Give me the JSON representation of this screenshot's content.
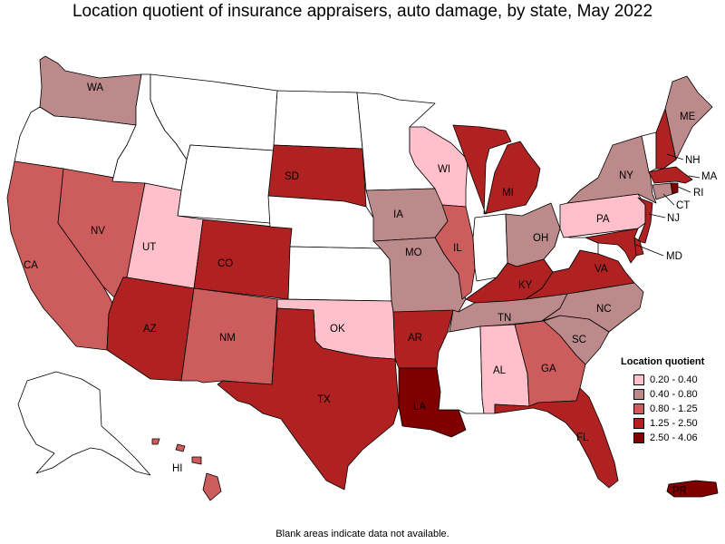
{
  "title": "Location quotient of insurance appraisers, auto damage, by state, May 2022",
  "footnote": "Blank areas indicate data not available.",
  "colors": {
    "none": "#ffffff",
    "c1": "#ffc0cb",
    "c2": "#bc8a8a",
    "c3": "#cd5c5c",
    "c4": "#b02222",
    "c5": "#800000"
  },
  "legend": {
    "title": "Location quotient",
    "items": [
      {
        "label": "0.20 - 0.40",
        "color": "#ffc0cb"
      },
      {
        "label": "0.40 - 0.80",
        "color": "#bc8a8a"
      },
      {
        "label": "0.80 - 1.25",
        "color": "#cd5c5c"
      },
      {
        "label": "1.25 - 2.50",
        "color": "#b02222"
      },
      {
        "label": "2.50 - 4.06",
        "color": "#800000"
      }
    ]
  },
  "states": {
    "WA": {
      "label": "WA",
      "class": "0.40 - 0.80"
    },
    "OR": {
      "label": "",
      "class": "none"
    },
    "CA": {
      "label": "CA",
      "class": "0.80 - 1.25"
    },
    "NV": {
      "label": "NV",
      "class": "0.80 - 1.25"
    },
    "ID": {
      "label": "",
      "class": "none"
    },
    "MT": {
      "label": "",
      "class": "none"
    },
    "WY": {
      "label": "",
      "class": "none"
    },
    "UT": {
      "label": "UT",
      "class": "0.20 - 0.40"
    },
    "AZ": {
      "label": "AZ",
      "class": "1.25 - 2.50"
    },
    "CO": {
      "label": "CO",
      "class": "1.25 - 2.50"
    },
    "NM": {
      "label": "NM",
      "class": "0.80 - 1.25"
    },
    "ND": {
      "label": "",
      "class": "none"
    },
    "SD": {
      "label": "SD",
      "class": "1.25 - 2.50"
    },
    "NE": {
      "label": "",
      "class": "none"
    },
    "KS": {
      "label": "",
      "class": "none"
    },
    "OK": {
      "label": "OK",
      "class": "0.20 - 0.40"
    },
    "TX": {
      "label": "TX",
      "class": "1.25 - 2.50"
    },
    "MN": {
      "label": "",
      "class": "none"
    },
    "IA": {
      "label": "IA",
      "class": "0.40 - 0.80"
    },
    "MO": {
      "label": "MO",
      "class": "0.40 - 0.80"
    },
    "AR": {
      "label": "AR",
      "class": "1.25 - 2.50"
    },
    "LA": {
      "label": "LA",
      "class": "2.50 - 4.06"
    },
    "WI": {
      "label": "WI",
      "class": "0.20 - 0.40"
    },
    "IL": {
      "label": "IL",
      "class": "0.80 - 1.25"
    },
    "MI": {
      "label": "MI",
      "class": "1.25 - 2.50"
    },
    "IN": {
      "label": "",
      "class": "none"
    },
    "OH": {
      "label": "OH",
      "class": "0.40 - 0.80"
    },
    "KY": {
      "label": "KY",
      "class": "1.25 - 2.50"
    },
    "TN": {
      "label": "TN",
      "class": "0.40 - 0.80"
    },
    "MS": {
      "label": "",
      "class": "none"
    },
    "AL": {
      "label": "AL",
      "class": "0.20 - 0.40"
    },
    "GA": {
      "label": "GA",
      "class": "0.80 - 1.25"
    },
    "FL": {
      "label": "FL",
      "class": "1.25 - 2.50"
    },
    "SC": {
      "label": "SC",
      "class": "0.40 - 0.80"
    },
    "NC": {
      "label": "NC",
      "class": "0.40 - 0.80"
    },
    "VA": {
      "label": "VA",
      "class": "1.25 - 2.50"
    },
    "WV": {
      "label": "",
      "class": "none"
    },
    "PA": {
      "label": "PA",
      "class": "0.20 - 0.40"
    },
    "NY": {
      "label": "NY",
      "class": "0.40 - 0.80"
    },
    "VT": {
      "label": "",
      "class": "none"
    },
    "NH": {
      "label": "NH",
      "class": "1.25 - 2.50"
    },
    "ME": {
      "label": "ME",
      "class": "0.40 - 0.80"
    },
    "MA": {
      "label": "MA",
      "class": "1.25 - 2.50"
    },
    "RI": {
      "label": "RI",
      "class": "2.50 - 4.06"
    },
    "CT": {
      "label": "CT",
      "class": "0.40 - 0.80"
    },
    "NJ": {
      "label": "NJ",
      "class": "1.25 - 2.50"
    },
    "DE": {
      "label": "",
      "class": "1.25 - 2.50"
    },
    "MD": {
      "label": "MD",
      "class": "1.25 - 2.50"
    },
    "AK": {
      "label": "",
      "class": "none"
    },
    "HI": {
      "label": "HI",
      "class": "0.80 - 1.25"
    },
    "PR": {
      "label": "PR",
      "class": "2.50 - 4.06"
    }
  }
}
